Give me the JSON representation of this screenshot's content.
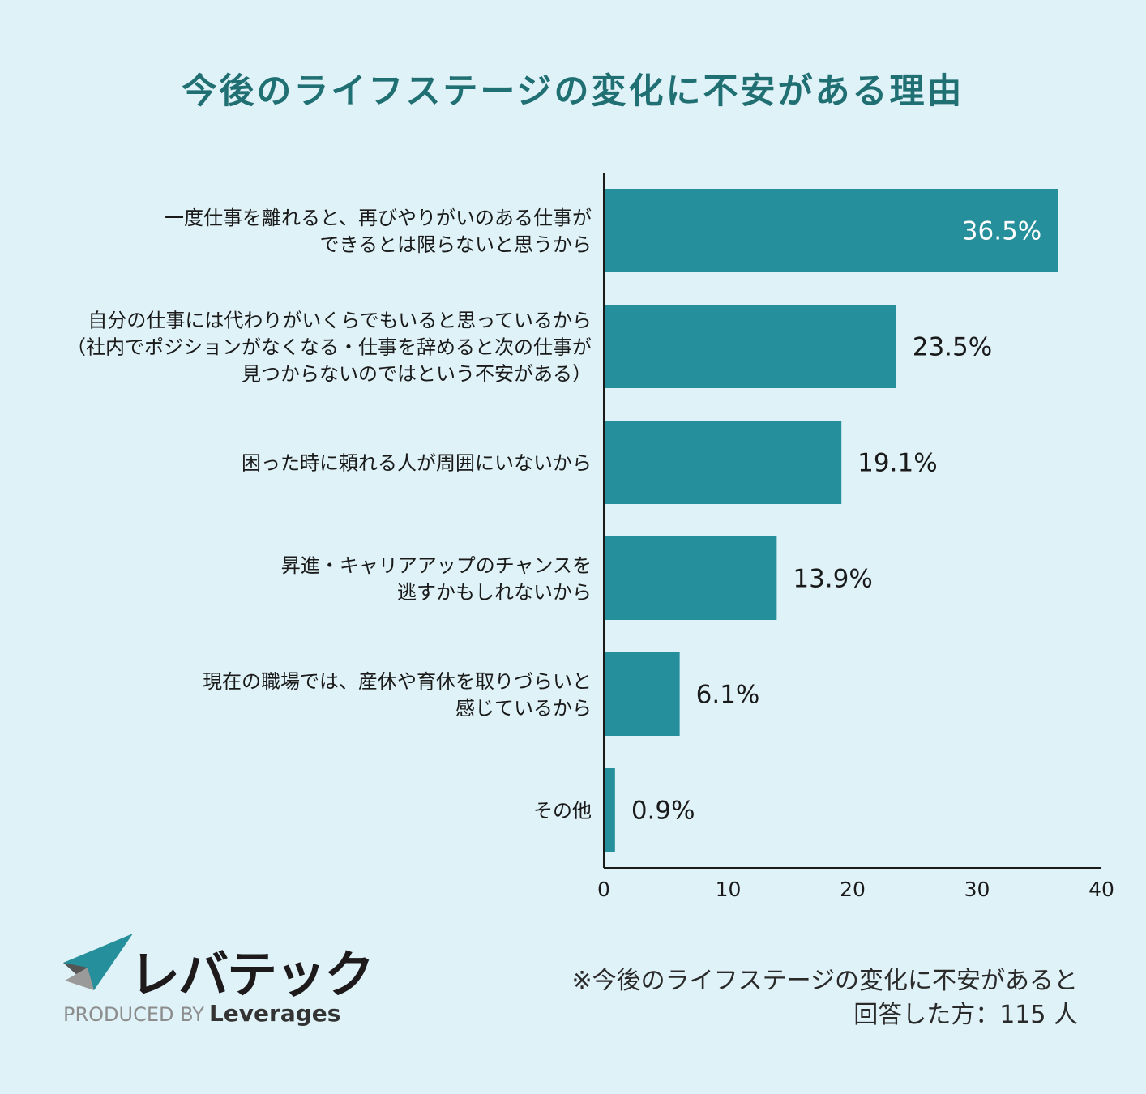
{
  "title": "今後のライフステージの変化に不安がある理由",
  "chart_data": {
    "type": "bar",
    "orientation": "horizontal",
    "title": "今後のライフステージの変化に不安がある理由",
    "categories": [
      [
        "一度仕事を離れると、再びやりがいのある仕事が",
        "できるとは限らないと思うから"
      ],
      [
        "自分の仕事には代わりがいくらでもいると思っているから",
        "（社内でポジションがなくなる・仕事を辞めると次の仕事が",
        "見つからないのではという不安がある）"
      ],
      [
        "困った時に頼れる人が周囲にいないから"
      ],
      [
        "昇進・キャリアアップのチャンスを",
        "逃すかもしれないから"
      ],
      [
        "現在の職場では、産休や育休を取りづらいと",
        "感じているから"
      ],
      [
        "その他"
      ]
    ],
    "values": [
      36.5,
      23.5,
      19.1,
      13.9,
      6.1,
      0.9
    ],
    "value_labels": [
      "36.5%",
      "23.5%",
      "19.1%",
      "13.9%",
      "6.1%",
      "0.9%"
    ],
    "xlim": [
      0,
      40
    ],
    "xticks": [
      0,
      10,
      20,
      30,
      40
    ],
    "bar_color": "#258f9c",
    "grid": false
  },
  "logo": {
    "brand": "レバテック",
    "produced_by": "PRODUCED BY",
    "company": "Leverages"
  },
  "note": {
    "line1": "※今後のライフステージの変化に不安があると",
    "line2": "回答した方：115 人"
  }
}
